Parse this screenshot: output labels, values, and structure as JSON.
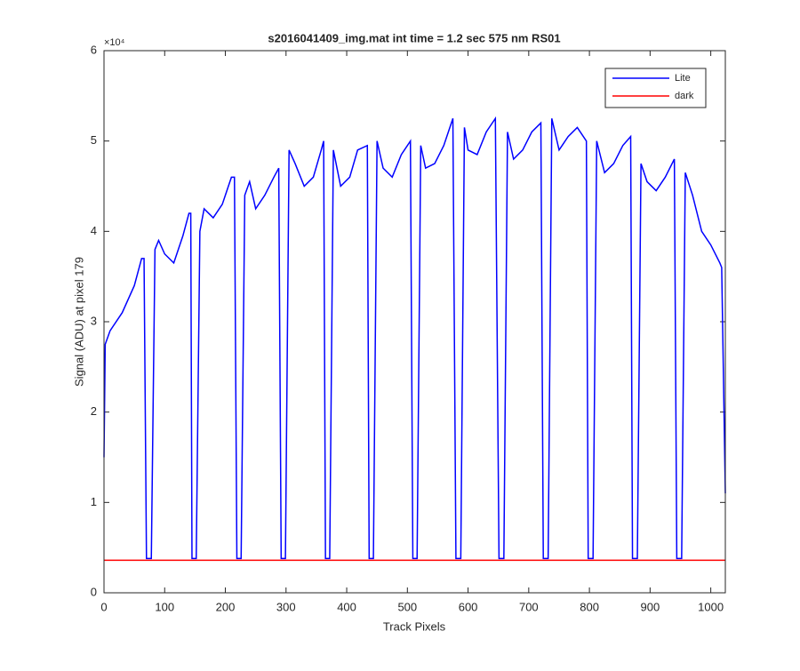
{
  "chart_data": {
    "type": "line",
    "title": "s2016041409_img.mat int time = 1.2 sec  575 nm RS01",
    "x_label": "Track Pixels",
    "y_label": "Signal (ADU) at pixel 179",
    "y_multiplier": "×10⁴",
    "xlim": [
      0,
      1024
    ],
    "xticks": [
      0,
      100,
      200,
      300,
      400,
      500,
      600,
      700,
      800,
      900,
      1000
    ],
    "ylim": [
      0,
      60000
    ],
    "yticks": [
      {
        "value": 0,
        "label": "0"
      },
      {
        "value": 10000,
        "label": "1"
      },
      {
        "value": 20000,
        "label": "2"
      },
      {
        "value": 30000,
        "label": "3"
      },
      {
        "value": 40000,
        "label": "4"
      },
      {
        "value": 50000,
        "label": "5"
      },
      {
        "value": 60000,
        "label": "6"
      }
    ],
    "legend": "northeast",
    "series": [
      {
        "name": "Lite",
        "color": "#0000ff",
        "x": [
          0,
          2,
          10,
          30,
          50,
          62,
          66,
          70,
          78,
          84,
          90,
          100,
          115,
          130,
          140,
          143,
          145,
          152,
          158,
          165,
          180,
          195,
          210,
          215,
          219,
          226,
          232,
          240,
          250,
          265,
          280,
          288,
          292,
          299,
          305,
          315,
          330,
          345,
          358,
          362,
          365,
          372,
          378,
          390,
          405,
          418,
          434,
          437,
          444,
          450,
          460,
          475,
          490,
          505,
          509,
          516,
          522,
          530,
          545,
          560,
          575,
          580,
          588,
          594,
          600,
          615,
          630,
          645,
          651,
          659,
          665,
          675,
          690,
          705,
          720,
          724,
          732,
          738,
          750,
          765,
          780,
          795,
          798,
          806,
          812,
          825,
          840,
          855,
          868,
          871,
          879,
          885,
          895,
          910,
          925,
          940,
          944,
          952,
          958,
          970,
          985,
          1000,
          1015,
          1018,
          1024
        ],
        "values": [
          15000,
          27500,
          29000,
          31000,
          34000,
          37000,
          37000,
          3800,
          3800,
          38000,
          39000,
          37500,
          36500,
          39500,
          42000,
          42000,
          3800,
          3800,
          40000,
          42500,
          41500,
          43000,
          46000,
          46000,
          3800,
          3800,
          44000,
          45500,
          42500,
          44000,
          46000,
          47000,
          3800,
          3800,
          49000,
          47500,
          45000,
          46000,
          49000,
          50000,
          3800,
          3800,
          49000,
          45000,
          46000,
          49000,
          49500,
          3800,
          3800,
          50000,
          47000,
          46000,
          48500,
          50000,
          3800,
          3800,
          49500,
          47000,
          47500,
          49500,
          52500,
          3800,
          3800,
          51500,
          49000,
          48500,
          51000,
          52500,
          3800,
          3800,
          51000,
          48000,
          49000,
          51000,
          52000,
          3800,
          3800,
          52500,
          49000,
          50500,
          51500,
          50000,
          3800,
          3800,
          50000,
          46500,
          47500,
          49500,
          50500,
          3800,
          3800,
          47500,
          45500,
          44500,
          46000,
          48000,
          3800,
          3800,
          46500,
          44000,
          40000,
          38500,
          36500,
          36000,
          11000
        ]
      },
      {
        "name": "dark",
        "color": "#ff0000",
        "x": [
          0,
          1024
        ],
        "values": [
          3600,
          3600
        ]
      }
    ]
  }
}
